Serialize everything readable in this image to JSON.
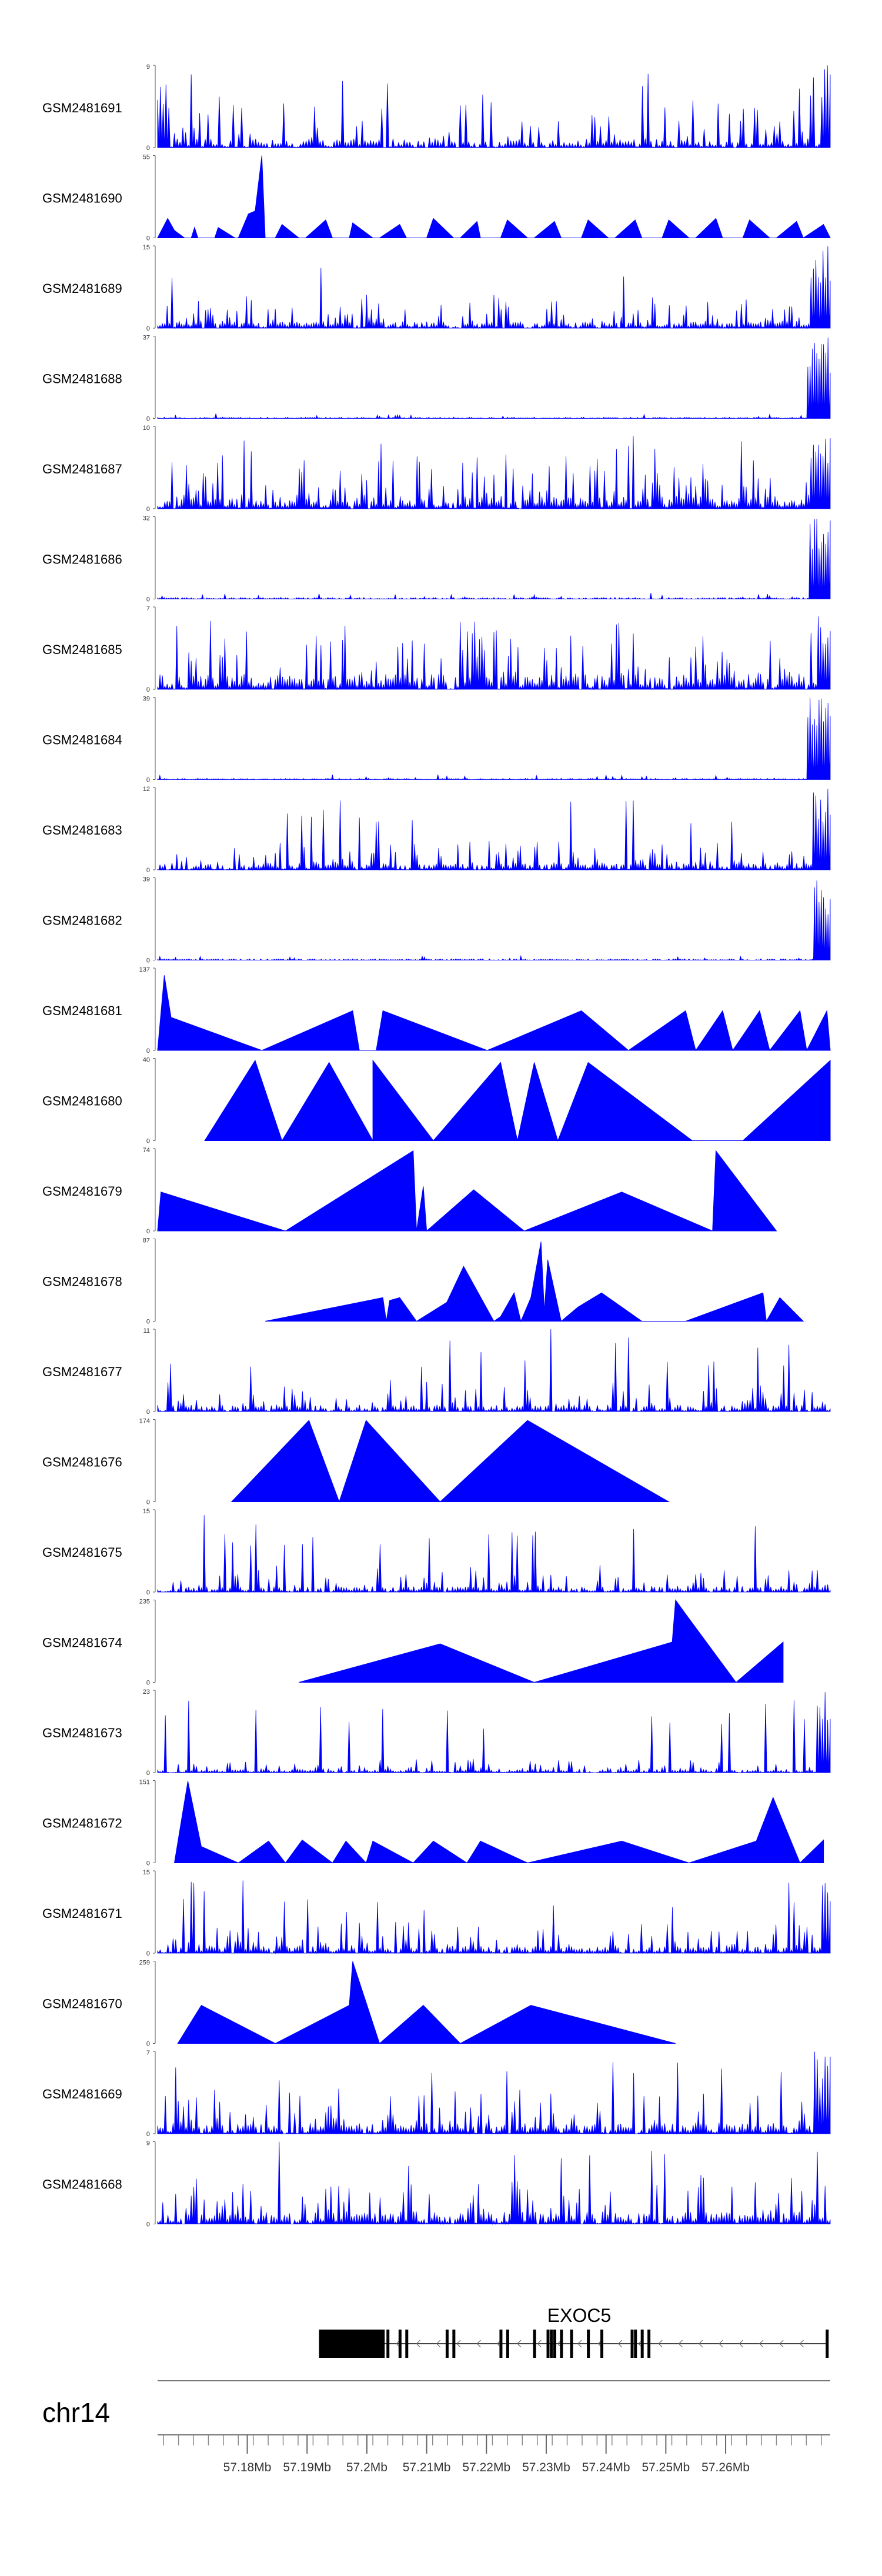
{
  "chart_data": {
    "type": "area",
    "title": "",
    "genomic_region": {
      "chromosome": "chr14",
      "xlim_mb": [
        57.165,
        57.2775
      ],
      "ticks_mb": [
        57.18,
        57.19,
        57.2,
        57.21,
        57.22,
        57.23,
        57.24,
        57.25,
        57.26
      ],
      "tick_labels": [
        "57.18Mb",
        "57.19Mb",
        "57.2Mb",
        "57.21Mb",
        "57.22Mb",
        "57.23Mb",
        "57.24Mb",
        "57.25Mb",
        "57.26Mb"
      ]
    },
    "series": [
      {
        "name": "GSM2481691",
        "ymax": 9,
        "ymin_label": "0",
        "ymax_label": "9",
        "style": "dense",
        "n": 240,
        "base": 1.0,
        "spread": 4.5,
        "seed": 1,
        "edge": [
          [
            0.0,
            0.02,
            7
          ],
          [
            0.985,
            1.0,
            9
          ]
        ],
        "spikes": [
          [
            0.05,
            8
          ],
          [
            0.34,
            7
          ]
        ]
      },
      {
        "name": "GSM2481690",
        "ymax": 55,
        "ymin_label": "0",
        "ymax_label": "55",
        "style": "tri",
        "color": "#0000ff",
        "x": [
          0.0,
          0.015,
          0.025,
          0.04,
          0.05,
          0.055,
          0.06,
          0.085,
          0.09,
          0.115,
          0.12,
          0.135,
          0.145,
          0.155,
          0.16,
          0.175,
          0.185,
          0.21,
          0.22,
          0.25,
          0.26,
          0.285,
          0.29,
          0.32,
          0.33,
          0.36,
          0.37,
          0.4,
          0.41,
          0.44,
          0.45,
          0.475,
          0.48,
          0.51,
          0.52,
          0.55,
          0.56,
          0.59,
          0.6,
          0.63,
          0.64,
          0.67,
          0.68,
          0.71,
          0.72,
          0.75,
          0.76,
          0.79,
          0.8,
          0.83,
          0.84,
          0.87,
          0.88,
          0.91,
          0.92,
          0.95,
          0.96,
          0.99,
          1.0
        ],
        "y": [
          0,
          13,
          5,
          0,
          0,
          7,
          0,
          0,
          7,
          0,
          0,
          16,
          18,
          55,
          0,
          0,
          9,
          0,
          0,
          12,
          0,
          0,
          10,
          0,
          0,
          9,
          0,
          0,
          13,
          0,
          0,
          11,
          0,
          0,
          12,
          0,
          0,
          11,
          0,
          0,
          12,
          0,
          0,
          12,
          0,
          0,
          12,
          0,
          0,
          13,
          0,
          0,
          12,
          0,
          0,
          11,
          0,
          9,
          0
        ]
      },
      {
        "name": "GSM2481689",
        "ymax": 15,
        "ymin_label": "0",
        "ymax_label": "15",
        "style": "dense",
        "n": 280,
        "base": 1.4,
        "spread": 5.2,
        "seed": 3,
        "edge": [
          [
            0.97,
            1.0,
            15
          ]
        ],
        "spikes": []
      },
      {
        "name": "GSM2481688",
        "ymax": 37,
        "ymin_label": "0",
        "ymax_label": "37",
        "style": "low",
        "n": 300,
        "base": 0.6,
        "spread": 1.8,
        "seed": 4,
        "edge": [
          [
            0.965,
            1.0,
            37
          ]
        ],
        "spikes": []
      },
      {
        "name": "GSM2481687",
        "ymax": 10,
        "ymin_label": "0",
        "ymax_label": "10",
        "style": "dense",
        "n": 280,
        "base": 1.5,
        "spread": 5.5,
        "seed": 5,
        "edge": [
          [
            0.975,
            1.0,
            10
          ]
        ],
        "spikes": []
      },
      {
        "name": "GSM2481686",
        "ymax": 32,
        "ymin_label": "0",
        "ymax_label": "32",
        "style": "low",
        "n": 300,
        "base": 0.6,
        "spread": 1.8,
        "seed": 6,
        "edge": [
          [
            0.97,
            1.0,
            32
          ]
        ],
        "spikes": []
      },
      {
        "name": "GSM2481685",
        "ymax": 7,
        "ymin_label": "0",
        "ymax_label": "7",
        "style": "dense",
        "n": 280,
        "base": 1.3,
        "spread": 4.6,
        "seed": 7,
        "edge": [
          [
            0.98,
            1.0,
            7
          ]
        ],
        "spikes": []
      },
      {
        "name": "GSM2481684",
        "ymax": 39,
        "ymin_label": "0",
        "ymax_label": "39",
        "style": "low",
        "n": 300,
        "base": 0.6,
        "spread": 1.8,
        "seed": 8,
        "edge": [
          [
            0.965,
            1.0,
            39
          ]
        ],
        "spikes": []
      },
      {
        "name": "GSM2481683",
        "ymax": 12,
        "ymin_label": "0",
        "ymax_label": "12",
        "style": "dense",
        "n": 280,
        "base": 1.0,
        "spread": 3.6,
        "seed": 9,
        "edge": [
          [
            0.975,
            1.0,
            12
          ]
        ],
        "spikes": []
      },
      {
        "name": "GSM2481682",
        "ymax": 39,
        "ymin_label": "0",
        "ymax_label": "39",
        "style": "low",
        "n": 300,
        "base": 0.6,
        "spread": 1.8,
        "seed": 10,
        "edge": [
          [
            0.975,
            1.0,
            39
          ]
        ],
        "spikes": []
      },
      {
        "name": "GSM2481681",
        "ymax": 137,
        "ymin_label": "0",
        "ymax_label": "137",
        "style": "tri",
        "color": "#0000ff",
        "x": [
          0.0,
          0.01,
          0.02,
          0.155,
          0.29,
          0.3,
          0.325,
          0.335,
          0.49,
          0.63,
          0.7,
          0.785,
          0.8,
          0.84,
          0.855,
          0.895,
          0.91,
          0.955,
          0.965,
          0.995,
          1.0
        ],
        "y": [
          0,
          125,
          55,
          0,
          66,
          0,
          0,
          66,
          0,
          66,
          0,
          66,
          0,
          66,
          0,
          66,
          0,
          66,
          0,
          66,
          0
        ]
      },
      {
        "name": "GSM2481680",
        "ymax": 40,
        "ymin_label": "0",
        "ymax_label": "40",
        "style": "tri",
        "color": "#0000ff",
        "x": [
          0.07,
          0.145,
          0.185,
          0.255,
          0.32,
          0.32,
          0.41,
          0.51,
          0.535,
          0.56,
          0.595,
          0.64,
          0.795,
          0.87,
          1.0,
          1.0
        ],
        "y": [
          0,
          39,
          0,
          38,
          0,
          39,
          0,
          38,
          0,
          38,
          0,
          38,
          0,
          0,
          39,
          0
        ]
      },
      {
        "name": "GSM2481679",
        "ymax": 74,
        "ymin_label": "0",
        "ymax_label": "74",
        "style": "tri",
        "color": "#0000ff",
        "x": [
          0.0,
          0.005,
          0.19,
          0.38,
          0.385,
          0.395,
          0.4,
          0.47,
          0.545,
          0.69,
          0.825,
          0.83,
          0.92
        ],
        "y": [
          0,
          35,
          0,
          72,
          0,
          40,
          0,
          37,
          0,
          35,
          0,
          72,
          0
        ]
      },
      {
        "name": "GSM2481678",
        "ymax": 87,
        "ymin_label": "0",
        "ymax_label": "87",
        "style": "tri",
        "color": "#0000ff",
        "x": [
          0.16,
          0.335,
          0.34,
          0.345,
          0.36,
          0.385,
          0.43,
          0.455,
          0.5,
          0.51,
          0.53,
          0.54,
          0.555,
          0.57,
          0.575,
          0.58,
          0.6,
          0.625,
          0.66,
          0.72,
          0.785,
          0.9,
          0.905,
          0.925,
          0.96
        ],
        "y": [
          0,
          25,
          0,
          22,
          25,
          0,
          20,
          58,
          0,
          5,
          30,
          0,
          25,
          84,
          10,
          65,
          0,
          15,
          30,
          0,
          0,
          30,
          0,
          25,
          0
        ]
      },
      {
        "name": "GSM2481677",
        "ymax": 11,
        "ymin_label": "0",
        "ymax_label": "11",
        "style": "dense",
        "n": 260,
        "base": 0.9,
        "spread": 3.4,
        "seed": 11,
        "edge": [],
        "spikes": [
          [
            0.585,
            11
          ],
          [
            0.14,
            6
          ]
        ]
      },
      {
        "name": "GSM2481676",
        "ymax": 174,
        "ymin_label": "0",
        "ymax_label": "174",
        "style": "tri",
        "color": "#0000ff",
        "x": [
          0.11,
          0.225,
          0.27,
          0.31,
          0.42,
          0.55,
          0.76
        ],
        "y": [
          0,
          172,
          0,
          172,
          0,
          172,
          0
        ]
      },
      {
        "name": "GSM2481675",
        "ymax": 15,
        "ymin_label": "0",
        "ymax_label": "15",
        "style": "dense",
        "n": 260,
        "base": 1.0,
        "spread": 4.2,
        "seed": 12,
        "edge": [],
        "spikes": [
          [
            0.07,
            14
          ],
          [
            0.23,
            10
          ]
        ]
      },
      {
        "name": "GSM2481674",
        "ymax": 235,
        "ymin_label": "0",
        "ymax_label": "235",
        "style": "tri",
        "color": "#0000ff",
        "x": [
          0.21,
          0.42,
          0.56,
          0.765,
          0.77,
          0.785,
          0.86,
          0.93
        ],
        "y": [
          0,
          110,
          0,
          115,
          235,
          195,
          0,
          115
        ]
      },
      {
        "name": "GSM2481673",
        "ymax": 23,
        "ymin_label": "0",
        "ymax_label": "23",
        "style": "dense",
        "n": 260,
        "base": 0.9,
        "spread": 3.2,
        "seed": 13,
        "edge": [
          [
            0.98,
            1.0,
            23
          ]
        ],
        "spikes": [
          [
            0.01,
            16
          ]
        ]
      },
      {
        "name": "GSM2481672",
        "ymax": 151,
        "ymin_label": "0",
        "ymax_label": "151",
        "style": "tri",
        "color": "#0000ff",
        "x": [
          0.025,
          0.045,
          0.065,
          0.12,
          0.165,
          0.19,
          0.215,
          0.26,
          0.28,
          0.31,
          0.32,
          0.38,
          0.41,
          0.46,
          0.48,
          0.55,
          0.69,
          0.79,
          0.89,
          0.915,
          0.955,
          0.99
        ],
        "y": [
          0,
          150,
          30,
          0,
          40,
          0,
          42,
          0,
          40,
          0,
          40,
          0,
          40,
          0,
          40,
          0,
          40,
          0,
          40,
          120,
          0,
          42
        ]
      },
      {
        "name": "GSM2481671",
        "ymax": 15,
        "ymin_label": "0",
        "ymax_label": "15",
        "style": "dense",
        "n": 260,
        "base": 1.3,
        "spread": 4.8,
        "seed": 14,
        "edge": [
          [
            0.985,
            1.0,
            15
          ]
        ],
        "spikes": [
          [
            0.05,
            13
          ]
        ]
      },
      {
        "name": "GSM2481670",
        "ymax": 259,
        "ymin_label": "0",
        "ymax_label": "259",
        "style": "tri",
        "color": "#0000ff",
        "x": [
          0.03,
          0.065,
          0.175,
          0.285,
          0.29,
          0.33,
          0.395,
          0.45,
          0.555,
          0.77
        ],
        "y": [
          0,
          120,
          0,
          120,
          258,
          0,
          120,
          0,
          120,
          0
        ]
      },
      {
        "name": "GSM2481669",
        "ymax": 7,
        "ymin_label": "0",
        "ymax_label": "7",
        "style": "dense",
        "n": 260,
        "base": 0.9,
        "spread": 3.2,
        "seed": 15,
        "edge": [
          [
            0.975,
            1.0,
            7
          ]
        ],
        "spikes": []
      },
      {
        "name": "GSM2481668",
        "ymax": 9,
        "ymin_label": "0",
        "ymax_label": "9",
        "style": "dense",
        "n": 260,
        "base": 1.4,
        "spread": 4.6,
        "seed": 16,
        "edge": [],
        "spikes": [
          [
            0.18,
            9
          ],
          [
            0.735,
            8
          ]
        ]
      }
    ],
    "gene_track": {
      "gene": "EXOC5",
      "strand": "-",
      "span_fraction": [
        0.24,
        0.995
      ],
      "utr_fraction": [
        0.24,
        0.335
      ],
      "exons_fraction": [
        0.335,
        0.342,
        0.36,
        0.37,
        0.43,
        0.44,
        0.51,
        0.52,
        0.56,
        0.58,
        0.585,
        0.59,
        0.6,
        0.615,
        0.64,
        0.66,
        0.705,
        0.71,
        0.72,
        0.73,
        0.995
      ]
    }
  }
}
